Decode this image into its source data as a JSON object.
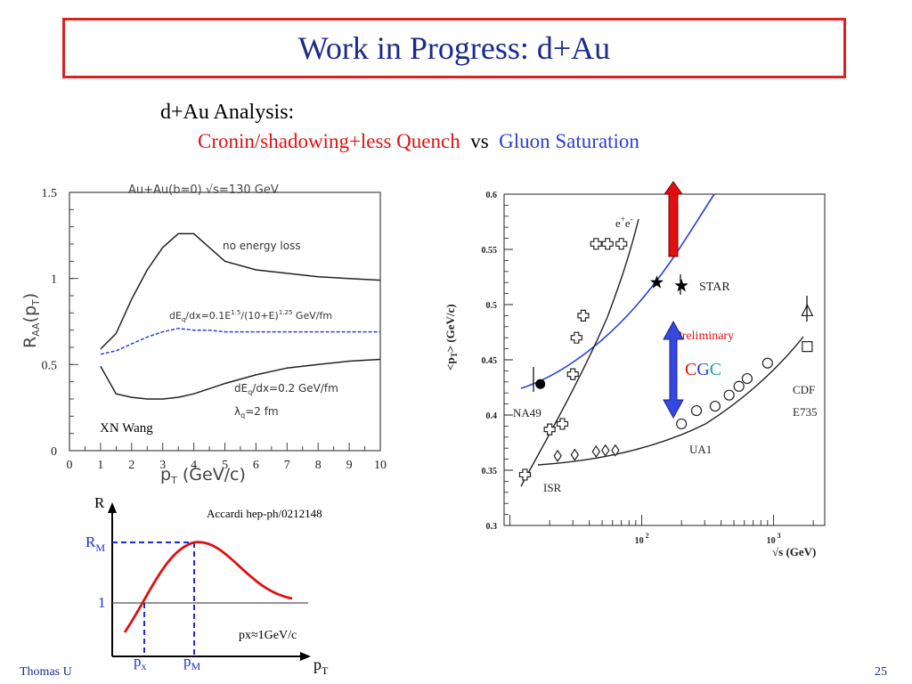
{
  "slide": {
    "title": "Work in Progress: d+Au",
    "analysis_label": "d+Au Analysis:",
    "analysis_left": "Cronin/shadowing+less Quench",
    "analysis_vs": "vs",
    "analysis_right": "Gluon Saturation",
    "footer_author": "Thomas U",
    "page_number": "25"
  },
  "figures": {
    "raa": {
      "header": "Au+Au(b=0)  √s=130 GeV",
      "ylabel_main": "R",
      "ylabel_sub": "AA",
      "ylabel_arg": "(p",
      "ylabel_argsub": "T",
      "ylabel_close": ")",
      "xlabel_main": "p",
      "xlabel_sub": "T",
      "xlabel_rest": " (GeV/c)",
      "label_no_loss": "no energy loss",
      "label_mid": "dE",
      "label_mid_sub": "q",
      "label_mid_rest": "/dx=0.1E",
      "label_mid_sup1": "1.5",
      "label_mid_rest2": "/(10+E)",
      "label_mid_sup2": "1.25",
      "label_mid_rest3": " GeV/fm",
      "label_low": "dE",
      "label_low_sub": "q",
      "label_low_rest": "/dx=0.2 GeV/fm",
      "label_lambda": "λ",
      "label_lambda_sub": "q",
      "label_lambda_rest": "=2 fm",
      "credit": "XN Wang"
    },
    "cartoon": {
      "y_axis": "R",
      "rm_label": "R",
      "rm_sub": "M",
      "one_label": "1",
      "px_label": "p",
      "px_sub": "x",
      "pm_label": "p",
      "pm_sub": "M",
      "x_axis": "p",
      "x_axis_sub": "T",
      "credit": "Accardi hep-ph/0212148",
      "note": "px≈1GeV/c"
    },
    "meanpt": {
      "ylabel": "<p",
      "ylabel_sub": "T",
      "ylabel_rest": "> (GeV/c)",
      "xlabel_pre": "√",
      "xlabel_rest": "s (GeV)",
      "label_ee": "e",
      "label_star": "STAR",
      "label_prelim": "Preliminary",
      "label_na49": "NA49",
      "label_isr": "ISR",
      "label_ua1": "UA1",
      "label_cdf": "CDF",
      "label_e735": "E735",
      "cgc_c1": "C",
      "cgc_g": "G",
      "cgc_c2": "C"
    }
  },
  "chart_data": [
    {
      "type": "line",
      "x": [
        1,
        1.5,
        2,
        2.5,
        3,
        3.5,
        4,
        4.5,
        5,
        6,
        7,
        8,
        9,
        10
      ],
      "series": [
        {
          "values": [
            0.59,
            0.68,
            0.88,
            1.05,
            1.18,
            1.26,
            1.26,
            1.18,
            1.1,
            1.05,
            1.03,
            1.01,
            1.0,
            0.99
          ]
        },
        {
          "values": [
            0.56,
            0.58,
            0.62,
            0.66,
            0.69,
            0.71,
            0.7,
            0.7,
            0.69,
            0.69,
            0.69,
            0.69,
            0.69,
            0.69
          ]
        },
        {
          "values": [
            0.49,
            0.33,
            0.31,
            0.3,
            0.3,
            0.31,
            0.33,
            0.36,
            0.39,
            0.44,
            0.48,
            0.5,
            0.52,
            0.53
          ]
        }
      ],
      "xlim": [
        0,
        10
      ],
      "ylim": [
        0,
        1.5
      ],
      "xticks": [
        "0",
        "1",
        "2",
        "3",
        "4",
        "5",
        "6",
        "7",
        "8",
        "9",
        "10"
      ],
      "yticks": [
        "0",
        "0.5",
        "1",
        "1.5"
      ]
    },
    {
      "type": "scatter",
      "ylim": [
        0.3,
        0.6
      ],
      "yticks": [
        "0.3",
        "0.35",
        "0.4",
        "0.45",
        "0.5",
        "0.55",
        "0.6"
      ],
      "xticks": [
        "10",
        "10"
      ],
      "xtick_superscripts": [
        "2",
        "3"
      ],
      "series": [
        {
          "name": "ISR",
          "x": [
            23,
            31,
            45,
            53,
            63
          ],
          "y": [
            0.363,
            0.364,
            0.367,
            0.368,
            0.368
          ],
          "marker": "diamond"
        },
        {
          "name": "NA49",
          "x": [
            17
          ],
          "y": [
            0.428
          ],
          "marker": "filled-circle"
        },
        {
          "name": "e+e-",
          "x": [
            13,
            20,
            25,
            30,
            32,
            36,
            45,
            55,
            70
          ],
          "y": [
            0.346,
            0.387,
            0.392,
            0.437,
            0.47,
            0.49,
            0.555,
            0.555,
            0.555
          ],
          "marker": "open-cross"
        },
        {
          "name": "STAR",
          "x": [
            130,
            200
          ],
          "y": [
            0.52,
            0.517
          ],
          "marker": "star"
        },
        {
          "name": "UA1",
          "x": [
            200,
            260,
            360,
            460,
            546,
            630,
            900
          ],
          "y": [
            0.392,
            0.404,
            0.408,
            0.418,
            0.426,
            0.433,
            0.447
          ],
          "marker": "open-circle"
        },
        {
          "name": "CDF",
          "x": [
            1800
          ],
          "y": [
            0.494
          ],
          "marker": "open-triangle"
        },
        {
          "name": "E735",
          "x": [
            1800
          ],
          "y": [
            0.462
          ],
          "marker": "open-square"
        }
      ]
    }
  ]
}
